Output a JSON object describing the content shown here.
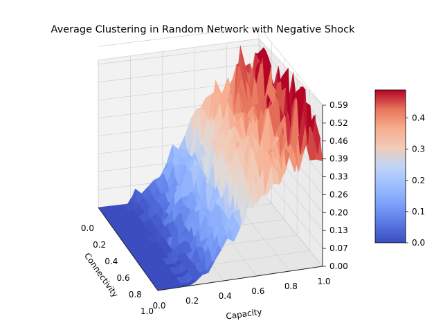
{
  "chart_data": {
    "type": "surface3d",
    "title": "Average Clustering in Random  Network with Negative Shock",
    "xlabel": "Capacity",
    "ylabel": "Connectivity",
    "zlabel": "",
    "xlim": [
      0.0,
      1.0
    ],
    "ylim": [
      0.0,
      1.0
    ],
    "zlim": [
      0.0,
      0.59
    ],
    "x_ticks": [
      "0.0",
      "0.2",
      "0.4",
      "0.6",
      "0.8",
      "1.0"
    ],
    "y_ticks": [
      "0.0",
      "0.2",
      "0.4",
      "0.6",
      "0.8",
      "1.0"
    ],
    "z_ticks": [
      "0.00",
      "0.07",
      "0.13",
      "0.20",
      "0.26",
      "0.33",
      "0.39",
      "0.46",
      "0.52",
      "0.59"
    ],
    "colormap": "coolwarm",
    "colorbar_ticks": [
      "0.0",
      "0.1",
      "0.2",
      "0.3",
      "0.4"
    ],
    "colorbar_range": [
      0.0,
      0.49
    ],
    "grid": true,
    "surface_description_points": [
      {
        "capacity": 0.0,
        "avg_clustering": 0.0
      },
      {
        "capacity": 0.2,
        "avg_clustering": 0.0
      },
      {
        "capacity": 0.3,
        "avg_clustering": 0.04
      },
      {
        "capacity": 0.4,
        "avg_clustering": 0.12
      },
      {
        "capacity": 0.5,
        "avg_clustering": 0.2
      },
      {
        "capacity": 0.6,
        "avg_clustering": 0.28
      },
      {
        "capacity": 0.7,
        "avg_clustering": 0.34
      },
      {
        "capacity": 0.8,
        "avg_clustering": 0.4
      },
      {
        "capacity": 0.9,
        "avg_clustering": 0.45
      },
      {
        "capacity": 1.0,
        "avg_clustering": 0.49
      }
    ],
    "colors": {
      "pane": "#f2f2f2",
      "grid": "#d0d0d0",
      "low": "#3b4cc0",
      "mid": "#dddddd",
      "high": "#b40426"
    }
  }
}
